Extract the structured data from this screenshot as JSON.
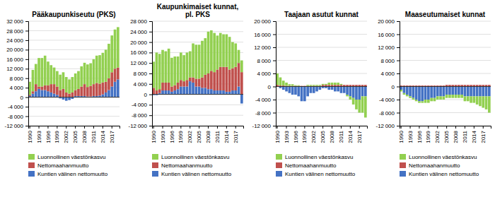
{
  "chart_data": [
    {
      "type": "bar",
      "stacked": true,
      "grid": true,
      "legend": "bottom",
      "title": "Pääkaupunkiseutu (PKS)",
      "categories": [
        "1990",
        null,
        null,
        "1993",
        null,
        null,
        "1996",
        null,
        null,
        "1999",
        null,
        null,
        "2002",
        null,
        null,
        "2005",
        null,
        null,
        "2008",
        null,
        null,
        "2011",
        null,
        null,
        "2014",
        null,
        null,
        "2017",
        null,
        null
      ],
      "ylim": [
        -12000,
        32000
      ],
      "yticks": [
        {
          "value": -12000,
          "label": "-12 000"
        },
        {
          "value": -8000,
          "label": "-8 000"
        },
        {
          "value": -4000,
          "label": "-4 000"
        },
        0,
        {
          "value": 4000,
          "label": "4 000"
        },
        {
          "value": 8000,
          "label": "8 000"
        },
        {
          "value": 12000,
          "label": "12 000"
        },
        {
          "value": 16000,
          "label": "16 000"
        },
        {
          "value": 20000,
          "label": "20 000"
        },
        {
          "value": 24000,
          "label": "24 000"
        },
        {
          "value": 28000,
          "label": "28 000"
        },
        {
          "value": 32000,
          "label": "32 000"
        }
      ],
      "series": [
        {
          "name": "Luonnollinen väestönkasvu",
          "color": "#92d050",
          "values": [
            5500,
            9000,
            8500,
            12000,
            12000,
            12500,
            10000,
            8000,
            7000,
            6500,
            6500,
            7000,
            6500,
            6000,
            6500,
            7000,
            7500,
            8500,
            9000,
            9500,
            9500,
            10500,
            11500,
            12000,
            12500,
            13500,
            14500,
            15500,
            16500,
            17000
          ]
        },
        {
          "name": "Nettomaahanmuutto",
          "color": "#c0504d",
          "values": [
            500,
            1000,
            3000,
            1000,
            1500,
            2000,
            2500,
            3500,
            4000,
            3500,
            3000,
            3500,
            2000,
            1500,
            2000,
            2500,
            3000,
            4000,
            5000,
            4000,
            4500,
            5000,
            5500,
            5000,
            5000,
            4500,
            5000,
            6000,
            5500,
            5000
          ]
        },
        {
          "name": "Kuntien välinen nettomuutto",
          "color": "#4472c4",
          "values": [
            500,
            1500,
            2500,
            3500,
            3000,
            3000,
            2500,
            2000,
            1500,
            1000,
            -500,
            -1000,
            -1500,
            -1200,
            -700,
            500,
            500,
            500,
            500,
            300,
            300,
            500,
            500,
            700,
            1200,
            2000,
            3000,
            4500,
            6500,
            7500
          ]
        }
      ]
    },
    {
      "type": "bar",
      "stacked": true,
      "grid": true,
      "legend": "bottom",
      "title": "Kaupunkimaiset kunnat,\npl. PKS",
      "categories": [
        "1990",
        null,
        null,
        "1993",
        null,
        null,
        "1996",
        null,
        null,
        "1999",
        null,
        null,
        "2002",
        null,
        null,
        "2005",
        null,
        null,
        "2008",
        null,
        null,
        "2011",
        null,
        null,
        "2014",
        null,
        null,
        "2017",
        null,
        null
      ],
      "ylim": [
        -12000,
        28000
      ],
      "yticks": [
        {
          "value": -12000,
          "label": "-12 000"
        },
        {
          "value": -8000,
          "label": "-8 000"
        },
        {
          "value": -4000,
          "label": "-4 000"
        },
        0,
        {
          "value": 4000,
          "label": "4 000"
        },
        {
          "value": 8000,
          "label": "8 000"
        },
        {
          "value": 12000,
          "label": "12 000"
        },
        {
          "value": 16000,
          "label": "16 000"
        },
        {
          "value": 20000,
          "label": "20 000"
        },
        {
          "value": 24000,
          "label": "24 000"
        },
        {
          "value": 28000,
          "label": "28 000"
        }
      ],
      "series": [
        {
          "name": "Luonnollinen väestönkasvu",
          "color": "#92d050",
          "values": [
            10000,
            14500,
            13500,
            12500,
            12000,
            13000,
            11000,
            11000,
            10000,
            10500,
            10000,
            10500,
            10000,
            13000,
            13000,
            13000,
            14000,
            14000,
            16000,
            15500,
            15000,
            13000,
            13000,
            12500,
            12500,
            12500,
            10000,
            9000,
            5000,
            4500
          ]
        },
        {
          "name": "Nettomaahanmuutto",
          "color": "#c0504d",
          "values": [
            2500,
            1500,
            1500,
            3000,
            3000,
            3000,
            2000,
            2000,
            2500,
            2500,
            2000,
            2500,
            1500,
            2000,
            3000,
            3000,
            4000,
            5000,
            6000,
            7000,
            7000,
            8000,
            9000,
            9000,
            9500,
            8500,
            8500,
            9000,
            9000,
            8500
          ]
        },
        {
          "name": "Kuntien välinen nettomuutto",
          "color": "#4472c4",
          "values": [
            -300,
            -300,
            500,
            1500,
            1500,
            1500,
            1000,
            1500,
            2000,
            3000,
            3000,
            3000,
            5000,
            4500,
            3000,
            3000,
            2500,
            2500,
            2000,
            2000,
            1500,
            1500,
            1500,
            1500,
            1000,
            1000,
            1500,
            1500,
            3000,
            -3500
          ]
        }
      ]
    },
    {
      "type": "bar",
      "stacked": true,
      "grid": true,
      "legend": "bottom",
      "title": "Taajaan asutut kunnat",
      "categories": [
        "1990",
        null,
        null,
        "1993",
        null,
        null,
        "1996",
        null,
        null,
        "1999",
        null,
        null,
        "2002",
        null,
        null,
        "2005",
        null,
        null,
        "2008",
        null,
        null,
        "2011",
        null,
        null,
        "2014",
        null,
        null,
        "2017",
        null,
        null
      ],
      "ylim": [
        -12000,
        20000
      ],
      "yticks": [
        {
          "value": -12000,
          "label": "-12 000"
        },
        {
          "value": -8000,
          "label": "-8 000"
        },
        {
          "value": -4000,
          "label": "-4 000"
        },
        0,
        {
          "value": 4000,
          "label": "4 000"
        },
        {
          "value": 8000,
          "label": "8 000"
        },
        {
          "value": 12000,
          "label": "12 000"
        },
        {
          "value": 16000,
          "label": "16 000"
        },
        {
          "value": 20000,
          "label": "20 000"
        }
      ],
      "series": [
        {
          "name": "Luonnollinen väestönkasvu",
          "color": "#92d050",
          "values": [
            3500,
            2500,
            1500,
            1000,
            500,
            500,
            200,
            200,
            0,
            0,
            300,
            300,
            300,
            300,
            300,
            300,
            300,
            700,
            700,
            700,
            700,
            300,
            0,
            -500,
            -1000,
            -2000,
            -3000,
            -4000,
            -5000,
            -6500
          ]
        },
        {
          "name": "Nettomaahanmuutto",
          "color": "#c0504d",
          "values": [
            500,
            300,
            300,
            200,
            200,
            200,
            200,
            200,
            200,
            200,
            200,
            200,
            200,
            200,
            200,
            500,
            500,
            500,
            500,
            500,
            500,
            500,
            500,
            500,
            500,
            500,
            500,
            500,
            500,
            500
          ]
        },
        {
          "name": "Kuntien välinen nettomuutto",
          "color": "#4472c4",
          "values": [
            0,
            -500,
            -1000,
            -1500,
            -2000,
            -2500,
            -2500,
            -3000,
            -4500,
            -4500,
            -3000,
            -2000,
            -2000,
            -1500,
            -1000,
            -500,
            -500,
            -1000,
            -1000,
            -1500,
            -1500,
            -2000,
            -2000,
            -2500,
            -3000,
            -3500,
            -4000,
            -4000,
            -3000,
            -3000
          ]
        }
      ]
    },
    {
      "type": "bar",
      "stacked": true,
      "grid": true,
      "legend": "bottom",
      "title": "Maaseutumaiset kunnat",
      "categories": [
        "1990",
        null,
        null,
        "1993",
        null,
        null,
        "1996",
        null,
        null,
        "1999",
        null,
        null,
        "2002",
        null,
        null,
        "2005",
        null,
        null,
        "2008",
        null,
        null,
        "2011",
        null,
        null,
        "2014",
        null,
        null,
        "2017",
        null,
        null
      ],
      "ylim": [
        -12000,
        20000
      ],
      "yticks": [
        {
          "value": -12000,
          "label": "-12 000"
        },
        {
          "value": -8000,
          "label": "-8 000"
        },
        {
          "value": -4000,
          "label": "-4 000"
        },
        0,
        {
          "value": 4000,
          "label": "4 000"
        },
        {
          "value": 8000,
          "label": "8 000"
        },
        {
          "value": 12000,
          "label": "12 000"
        },
        {
          "value": 16000,
          "label": "16 000"
        },
        {
          "value": 20000,
          "label": "20 000"
        }
      ],
      "series": [
        {
          "name": "Luonnollinen väestönkasvu",
          "color": "#92d050",
          "values": [
            -500,
            -500,
            -500,
            -500,
            -500,
            -500,
            -500,
            -500,
            -1000,
            -1000,
            -1000,
            -1000,
            -1000,
            -1000,
            -1000,
            -1000,
            -1000,
            -1000,
            -1000,
            -1000,
            -1000,
            -1500,
            -1500,
            -2000,
            -2000,
            -2500,
            -3000,
            -3500,
            -4000,
            -5000
          ]
        },
        {
          "name": "Nettomaahanmuutto",
          "color": "#c0504d",
          "values": [
            300,
            300,
            300,
            300,
            300,
            300,
            300,
            300,
            300,
            300,
            300,
            300,
            300,
            300,
            300,
            500,
            500,
            500,
            500,
            500,
            500,
            500,
            500,
            500,
            500,
            500,
            500,
            500,
            500,
            500
          ]
        },
        {
          "name": "Kuntien välinen nettomuutto",
          "color": "#4472c4",
          "values": [
            -1000,
            -2000,
            -2500,
            -3000,
            -3500,
            -4000,
            -4500,
            -4500,
            -4000,
            -4000,
            -3500,
            -3500,
            -3000,
            -3000,
            -3000,
            -2500,
            -2500,
            -2500,
            -2500,
            -2500,
            -2500,
            -3000,
            -3000,
            -3000,
            -3000,
            -3000,
            -3000,
            -3000,
            -3000,
            -3000
          ]
        }
      ]
    }
  ]
}
